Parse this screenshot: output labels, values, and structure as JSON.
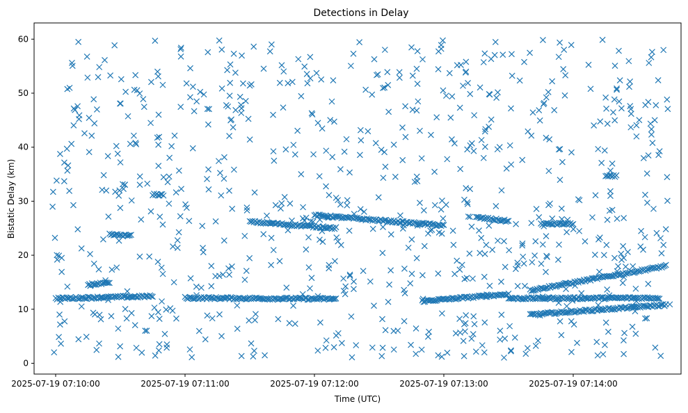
{
  "chart_data": {
    "type": "scatter",
    "title": "Detections in Delay",
    "xlabel": "Time (UTC)",
    "ylabel": "Bistatic Delay (km)",
    "marker": "x",
    "marker_color": "#1f77b4",
    "grid": false,
    "legend": "none",
    "xlim": [
      "2025-07-19 07:09:50",
      "2025-07-19 07:14:50"
    ],
    "ylim": [
      -2,
      63
    ],
    "x_ticks": [
      "2025-07-19 07:10:00",
      "2025-07-19 07:11:00",
      "2025-07-19 07:12:00",
      "2025-07-19 07:13:00",
      "2025-07-19 07:14:00"
    ],
    "y_ticks": [
      0,
      10,
      20,
      30,
      40,
      50,
      60
    ],
    "tracks": [
      {
        "t_start": "2025-07-19 07:10:00",
        "t_end": "2025-07-19 07:10:45",
        "delay_start": 12.0,
        "delay_end": 12.4
      },
      {
        "t_start": "2025-07-19 07:11:00",
        "t_end": "2025-07-19 07:12:10",
        "delay_start": 12.1,
        "delay_end": 11.9
      },
      {
        "t_start": "2025-07-19 07:12:50",
        "t_end": "2025-07-19 07:13:30",
        "delay_start": 11.5,
        "delay_end": 12.8
      },
      {
        "t_start": "2025-07-19 07:13:30",
        "t_end": "2025-07-19 07:14:40",
        "delay_start": 12.0,
        "delay_end": 12.1
      },
      {
        "t_start": "2025-07-19 07:13:40",
        "t_end": "2025-07-19 07:14:43",
        "delay_start": 13.5,
        "delay_end": 18.0
      },
      {
        "t_start": "2025-07-19 07:13:40",
        "t_end": "2025-07-19 07:14:43",
        "delay_start": 9.0,
        "delay_end": 10.8
      },
      {
        "t_start": "2025-07-19 07:11:30",
        "t_end": "2025-07-19 07:12:10",
        "delay_start": 26.2,
        "delay_end": 25.0
      },
      {
        "t_start": "2025-07-19 07:12:00",
        "t_end": "2025-07-19 07:13:00",
        "delay_start": 27.4,
        "delay_end": 25.5
      },
      {
        "t_start": "2025-07-19 07:13:15",
        "t_end": "2025-07-19 07:13:30",
        "delay_start": 27.0,
        "delay_end": 26.3
      },
      {
        "t_start": "2025-07-19 07:13:45",
        "t_end": "2025-07-19 07:14:00",
        "delay_start": 25.8,
        "delay_end": 25.8
      },
      {
        "t_start": "2025-07-19 07:14:15",
        "t_end": "2025-07-19 07:14:20",
        "delay_start": 34.6,
        "delay_end": 34.6
      },
      {
        "t_start": "2025-07-19 07:10:15",
        "t_end": "2025-07-19 07:10:25",
        "delay_start": 14.6,
        "delay_end": 14.8
      },
      {
        "t_start": "2025-07-19 07:10:25",
        "t_end": "2025-07-19 07:10:35",
        "delay_start": 23.8,
        "delay_end": 23.6
      },
      {
        "t_start": "2025-07-19 07:10:45",
        "t_end": "2025-07-19 07:10:50",
        "delay_start": 31.2,
        "delay_end": 31.2
      }
    ],
    "clutter_note_seed": 12345,
    "clutter_count": 820
  }
}
